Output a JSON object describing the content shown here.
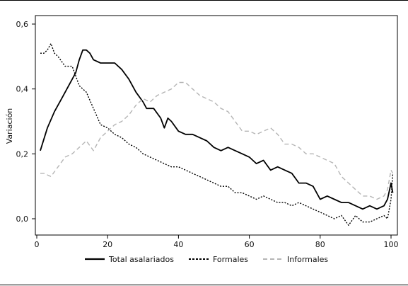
{
  "chart_data": {
    "type": "line",
    "title": "",
    "xlabel": "",
    "ylabel": "Variación",
    "xlim": [
      0,
      100
    ],
    "ylim": [
      -0.03,
      0.6
    ],
    "x_ticks": [
      0,
      20,
      40,
      60,
      80,
      100
    ],
    "y_ticks": [
      0.0,
      0.2,
      0.4,
      0.6
    ],
    "y_tick_labels": [
      "0,0",
      "0,2",
      "0,4",
      "0,6"
    ],
    "grid": false,
    "legend_position": "bottom",
    "series": [
      {
        "name": "Total asalariados",
        "color": "#000000",
        "dash": "solid",
        "points": [
          [
            1,
            0.21
          ],
          [
            3,
            0.28
          ],
          [
            5,
            0.33
          ],
          [
            7,
            0.37
          ],
          [
            9,
            0.41
          ],
          [
            11,
            0.45
          ],
          [
            12,
            0.49
          ],
          [
            13,
            0.52
          ],
          [
            14,
            0.52
          ],
          [
            15,
            0.51
          ],
          [
            16,
            0.49
          ],
          [
            18,
            0.48
          ],
          [
            20,
            0.48
          ],
          [
            22,
            0.48
          ],
          [
            24,
            0.46
          ],
          [
            26,
            0.43
          ],
          [
            28,
            0.39
          ],
          [
            30,
            0.36
          ],
          [
            31,
            0.34
          ],
          [
            33,
            0.34
          ],
          [
            35,
            0.31
          ],
          [
            36,
            0.28
          ],
          [
            37,
            0.31
          ],
          [
            38,
            0.3
          ],
          [
            40,
            0.27
          ],
          [
            42,
            0.26
          ],
          [
            44,
            0.26
          ],
          [
            46,
            0.25
          ],
          [
            48,
            0.24
          ],
          [
            50,
            0.22
          ],
          [
            52,
            0.21
          ],
          [
            54,
            0.22
          ],
          [
            56,
            0.21
          ],
          [
            58,
            0.2
          ],
          [
            60,
            0.19
          ],
          [
            62,
            0.17
          ],
          [
            64,
            0.18
          ],
          [
            66,
            0.15
          ],
          [
            68,
            0.16
          ],
          [
            70,
            0.15
          ],
          [
            72,
            0.14
          ],
          [
            74,
            0.11
          ],
          [
            76,
            0.11
          ],
          [
            78,
            0.1
          ],
          [
            80,
            0.06
          ],
          [
            82,
            0.07
          ],
          [
            84,
            0.06
          ],
          [
            86,
            0.05
          ],
          [
            88,
            0.05
          ],
          [
            90,
            0.04
          ],
          [
            92,
            0.03
          ],
          [
            94,
            0.04
          ],
          [
            96,
            0.03
          ],
          [
            98,
            0.04
          ],
          [
            99,
            0.06
          ],
          [
            100,
            0.11
          ],
          [
            100.5,
            0.08
          ]
        ]
      },
      {
        "name": "Formales",
        "color": "#000000",
        "dash": "dotted",
        "points": [
          [
            1,
            0.51
          ],
          [
            2,
            0.51
          ],
          [
            3,
            0.52
          ],
          [
            4,
            0.54
          ],
          [
            5,
            0.51
          ],
          [
            6,
            0.5
          ],
          [
            8,
            0.47
          ],
          [
            10,
            0.47
          ],
          [
            11,
            0.44
          ],
          [
            12,
            0.41
          ],
          [
            14,
            0.39
          ],
          [
            16,
            0.34
          ],
          [
            18,
            0.29
          ],
          [
            20,
            0.28
          ],
          [
            22,
            0.26
          ],
          [
            24,
            0.25
          ],
          [
            26,
            0.23
          ],
          [
            28,
            0.22
          ],
          [
            30,
            0.2
          ],
          [
            32,
            0.19
          ],
          [
            34,
            0.18
          ],
          [
            36,
            0.17
          ],
          [
            38,
            0.16
          ],
          [
            40,
            0.16
          ],
          [
            42,
            0.15
          ],
          [
            44,
            0.14
          ],
          [
            46,
            0.13
          ],
          [
            48,
            0.12
          ],
          [
            50,
            0.11
          ],
          [
            52,
            0.1
          ],
          [
            54,
            0.1
          ],
          [
            56,
            0.08
          ],
          [
            58,
            0.08
          ],
          [
            60,
            0.07
          ],
          [
            62,
            0.06
          ],
          [
            64,
            0.07
          ],
          [
            66,
            0.06
          ],
          [
            68,
            0.05
          ],
          [
            70,
            0.05
          ],
          [
            72,
            0.04
          ],
          [
            74,
            0.05
          ],
          [
            76,
            0.04
          ],
          [
            78,
            0.03
          ],
          [
            80,
            0.02
          ],
          [
            82,
            0.01
          ],
          [
            84,
            0.0
          ],
          [
            86,
            0.01
          ],
          [
            88,
            -0.02
          ],
          [
            90,
            0.01
          ],
          [
            92,
            -0.01
          ],
          [
            94,
            -0.01
          ],
          [
            96,
            0.0
          ],
          [
            98,
            0.01
          ],
          [
            99,
            0.0
          ],
          [
            100,
            0.06
          ],
          [
            100.5,
            0.14
          ]
        ]
      },
      {
        "name": "Informales",
        "color": "#b5b5b5",
        "dash": "dashed",
        "points": [
          [
            1,
            0.14
          ],
          [
            2,
            0.14
          ],
          [
            4,
            0.13
          ],
          [
            6,
            0.16
          ],
          [
            8,
            0.19
          ],
          [
            10,
            0.2
          ],
          [
            12,
            0.22
          ],
          [
            14,
            0.24
          ],
          [
            16,
            0.21
          ],
          [
            18,
            0.25
          ],
          [
            20,
            0.27
          ],
          [
            22,
            0.29
          ],
          [
            24,
            0.3
          ],
          [
            26,
            0.32
          ],
          [
            28,
            0.35
          ],
          [
            30,
            0.37
          ],
          [
            32,
            0.36
          ],
          [
            34,
            0.38
          ],
          [
            36,
            0.39
          ],
          [
            38,
            0.4
          ],
          [
            40,
            0.42
          ],
          [
            42,
            0.42
          ],
          [
            44,
            0.4
          ],
          [
            46,
            0.38
          ],
          [
            48,
            0.37
          ],
          [
            50,
            0.36
          ],
          [
            52,
            0.34
          ],
          [
            54,
            0.33
          ],
          [
            56,
            0.3
          ],
          [
            58,
            0.27
          ],
          [
            60,
            0.27
          ],
          [
            62,
            0.26
          ],
          [
            64,
            0.27
          ],
          [
            66,
            0.28
          ],
          [
            68,
            0.26
          ],
          [
            70,
            0.23
          ],
          [
            72,
            0.23
          ],
          [
            74,
            0.22
          ],
          [
            76,
            0.2
          ],
          [
            78,
            0.2
          ],
          [
            80,
            0.19
          ],
          [
            82,
            0.18
          ],
          [
            84,
            0.17
          ],
          [
            86,
            0.13
          ],
          [
            88,
            0.11
          ],
          [
            90,
            0.09
          ],
          [
            92,
            0.07
          ],
          [
            94,
            0.07
          ],
          [
            96,
            0.06
          ],
          [
            98,
            0.07
          ],
          [
            99,
            0.09
          ],
          [
            100,
            0.15
          ],
          [
            100.5,
            0.14
          ]
        ]
      }
    ]
  }
}
